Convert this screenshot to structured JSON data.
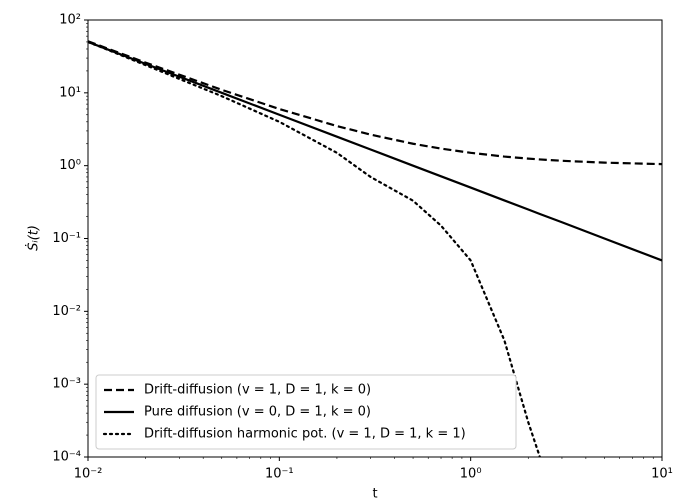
{
  "chart_data": {
    "type": "line",
    "xlabel": "t",
    "ylabel": "Ṡᵢ(t)",
    "x": [
      0.01,
      0.02,
      0.05,
      0.1,
      0.2,
      0.3,
      0.5,
      0.7,
      1,
      1.5,
      2,
      2.3,
      3,
      5,
      10
    ],
    "series": [
      {
        "name": "Drift-diffusion (v = 1, D = 1, k = 0)",
        "color": "#000000",
        "style": "dashed",
        "values": [
          51,
          26,
          11,
          6,
          3.5,
          2.667,
          2,
          1.714,
          1.5,
          1.333,
          1.25,
          1.217,
          1.167,
          1.1,
          1.05
        ]
      },
      {
        "name": "Pure diffusion (v = 0, D = 1, k = 0)",
        "color": "#000000",
        "style": "solid",
        "values": [
          50,
          25,
          10,
          5,
          2.5,
          1.667,
          1,
          0.714,
          0.5,
          0.333,
          0.25,
          0.217,
          0.167,
          0.1,
          0.05
        ]
      },
      {
        "name": "Drift-diffusion harmonic pot. (v = 1, D = 1, k = 1)",
        "color": "#000000",
        "style": "dotted",
        "values": [
          50,
          24,
          9,
          4,
          1.5,
          0.7,
          0.33,
          0.15,
          0.05,
          0.004,
          0.0003,
          0.0001,
          null,
          null,
          null
        ]
      }
    ],
    "xscale": "log",
    "yscale": "log",
    "xlim": [
      0.01,
      10
    ],
    "ylim": [
      0.0001,
      100
    ],
    "xticks": [
      {
        "value": 0.01,
        "label": "10⁻²"
      },
      {
        "value": 0.1,
        "label": "10⁻¹"
      },
      {
        "value": 1,
        "label": "10⁰"
      },
      {
        "value": 10,
        "label": "10¹"
      }
    ],
    "yticks": [
      {
        "value": 0.0001,
        "label": "10⁻⁴"
      },
      {
        "value": 0.001,
        "label": "10⁻³"
      },
      {
        "value": 0.01,
        "label": "10⁻²"
      },
      {
        "value": 0.1,
        "label": "10⁻¹"
      },
      {
        "value": 1,
        "label": "10⁰"
      },
      {
        "value": 10,
        "label": "10¹"
      },
      {
        "value": 100,
        "label": "10²"
      }
    ],
    "grid": false,
    "legend": "lower left"
  }
}
